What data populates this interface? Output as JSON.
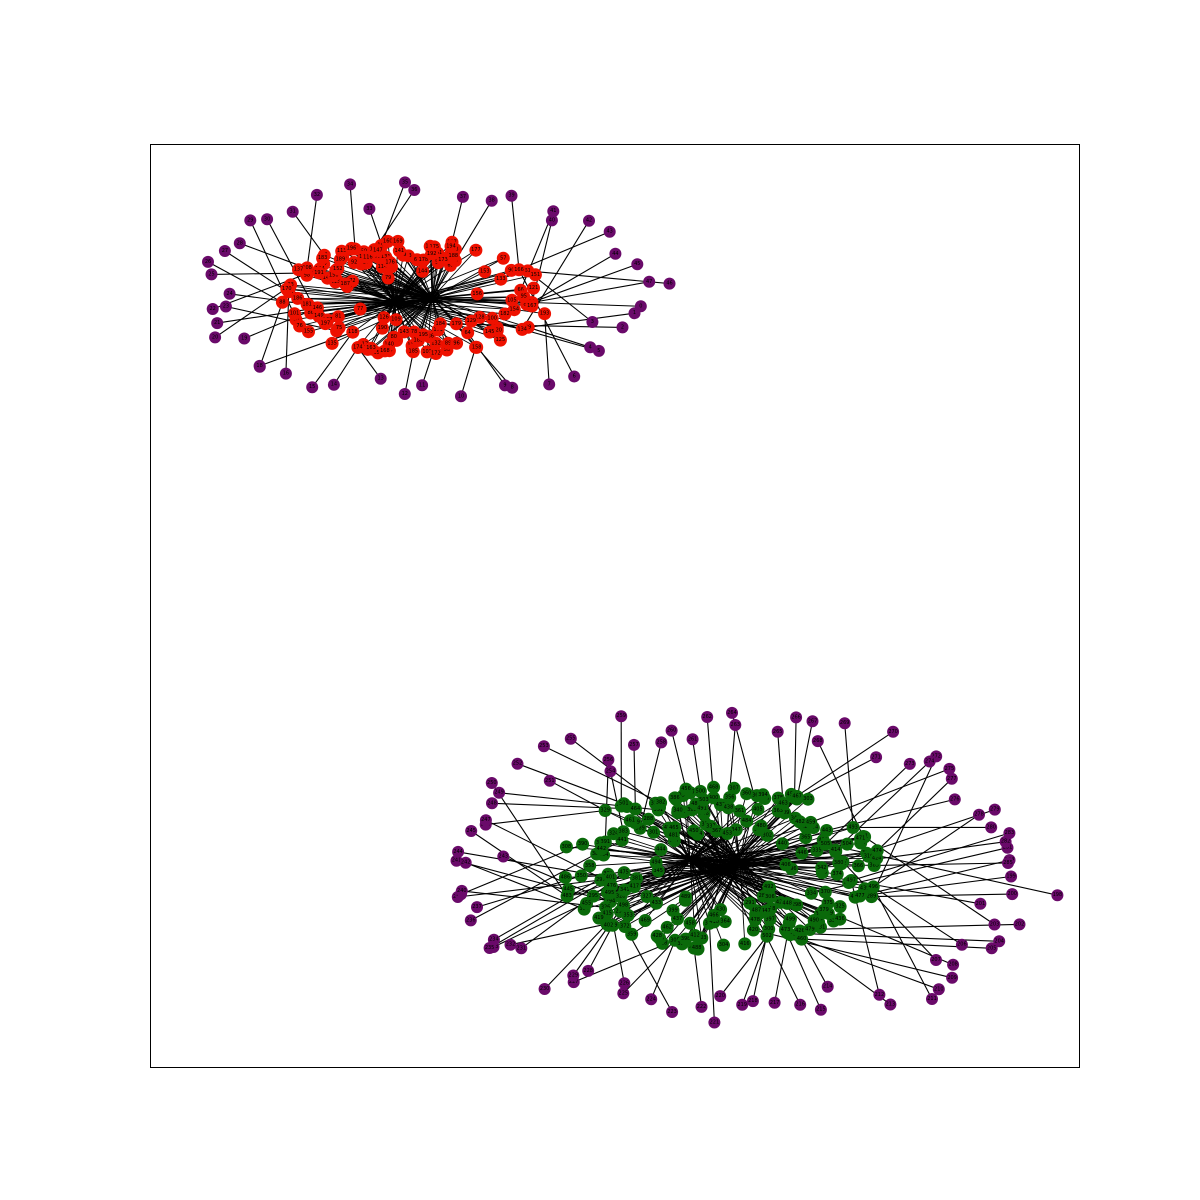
{
  "figure": {
    "background": "#ffffff",
    "frame_color": "#000000",
    "edge_color": "#000000"
  },
  "clusters": [
    {
      "name": "cluster-top-left",
      "core_color": "#ee1100",
      "periphery_color": "#6a0a6a",
      "core_node_count": 150,
      "periphery_node_count": 48
    },
    {
      "name": "cluster-bottom-right",
      "core_color": "#0a6a0a",
      "periphery_color": "#6a0a6a",
      "core_node_count": 220,
      "periphery_node_count": 88
    }
  ]
}
